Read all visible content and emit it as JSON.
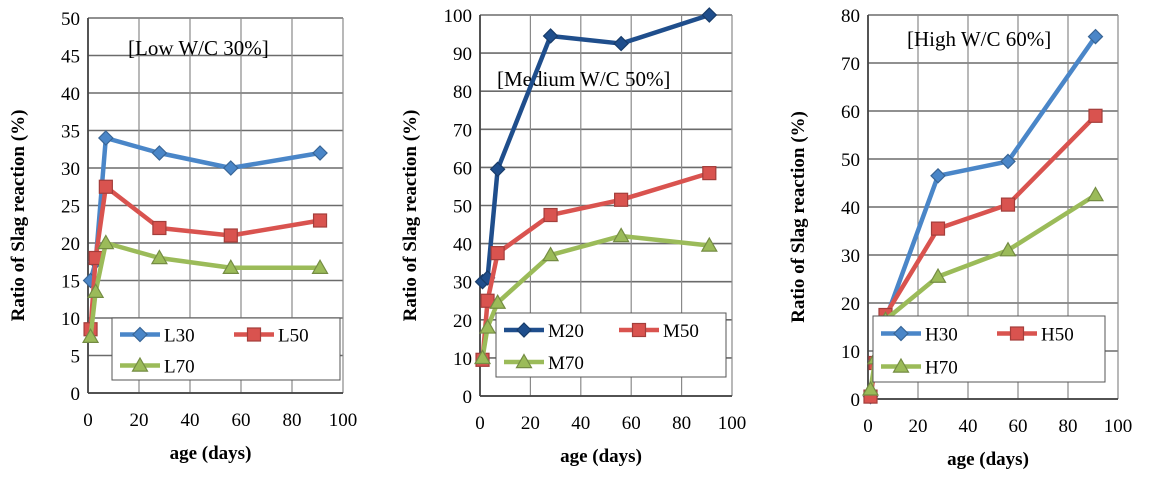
{
  "chart_data": [
    {
      "type": "line",
      "annotation": "[Low W/C 30%]",
      "xlabel": "age (days)",
      "ylabel": "Ratio of Slag reaction (%)",
      "xlim": [
        0,
        100
      ],
      "ylim": [
        0,
        50
      ],
      "xticks": [
        0,
        20,
        40,
        60,
        80,
        100
      ],
      "yticks": [
        0,
        5,
        10,
        15,
        20,
        25,
        30,
        35,
        40,
        45,
        50
      ],
      "grid": true,
      "legend": "bottom",
      "series": [
        {
          "name": "L30",
          "color": "#4a86c8",
          "marker": "diamond",
          "x": [
            1,
            3,
            7,
            28,
            56,
            91
          ],
          "y": [
            15,
            17.5,
            34,
            32,
            30,
            32
          ]
        },
        {
          "name": "L50",
          "color": "#d9534f",
          "marker": "square",
          "x": [
            1,
            3,
            7,
            28,
            56,
            91
          ],
          "y": [
            8.5,
            18,
            27.5,
            22,
            21,
            23
          ]
        },
        {
          "name": "L70",
          "color": "#9bbb59",
          "marker": "triangle",
          "x": [
            1,
            3,
            7,
            28,
            56,
            91
          ],
          "y": [
            7.5,
            13.5,
            20,
            18,
            16.7,
            16.7
          ]
        }
      ]
    },
    {
      "type": "line",
      "annotation": "[Medium W/C 50%]",
      "xlabel": "age (days)",
      "ylabel": "Ratio of Slag reaction (%)",
      "xlim": [
        0,
        100
      ],
      "ylim": [
        0,
        100
      ],
      "xticks": [
        0,
        20,
        40,
        60,
        80,
        100
      ],
      "yticks": [
        0,
        10,
        20,
        30,
        40,
        50,
        60,
        70,
        80,
        90,
        100
      ],
      "grid": true,
      "legend": "bottom",
      "series": [
        {
          "name": "M20",
          "color": "#1f4e8c",
          "marker": "diamond",
          "x": [
            1,
            3,
            7,
            28,
            56,
            91
          ],
          "y": [
            30,
            31,
            59.5,
            94.5,
            92.5,
            100
          ]
        },
        {
          "name": "M50",
          "color": "#d9534f",
          "marker": "square",
          "x": [
            1,
            3,
            7,
            28,
            56,
            91
          ],
          "y": [
            9.5,
            25,
            37.5,
            47.5,
            51.5,
            58.5
          ]
        },
        {
          "name": "M70",
          "color": "#9bbb59",
          "marker": "triangle",
          "x": [
            1,
            3,
            7,
            28,
            56,
            91
          ],
          "y": [
            10,
            18,
            24.5,
            37,
            42,
            39.5
          ]
        }
      ]
    },
    {
      "type": "line",
      "annotation": "[High W/C 60%]",
      "xlabel": "age (days)",
      "ylabel": "Ratio of Slag reaction (%)",
      "xlim": [
        0,
        100
      ],
      "ylim": [
        0,
        80
      ],
      "xticks": [
        0,
        20,
        40,
        60,
        80,
        100
      ],
      "yticks": [
        0,
        10,
        20,
        30,
        40,
        50,
        60,
        70,
        80
      ],
      "grid": true,
      "legend": "bottom",
      "series": [
        {
          "name": "H30",
          "color": "#4a86c8",
          "marker": "diamond",
          "x": [
            1,
            3,
            7,
            28,
            56,
            91
          ],
          "y": [
            0.5,
            8,
            16.5,
            46.5,
            49.5,
            75.5
          ]
        },
        {
          "name": "H50",
          "color": "#d9534f",
          "marker": "square",
          "x": [
            1,
            3,
            7,
            28,
            56,
            91
          ],
          "y": [
            0.5,
            7.5,
            17.5,
            35.5,
            40.5,
            59
          ]
        },
        {
          "name": "H70",
          "color": "#9bbb59",
          "marker": "triangle",
          "x": [
            1,
            3,
            7,
            28,
            56,
            91
          ],
          "y": [
            2,
            8.5,
            16.5,
            25.5,
            31,
            42.5
          ]
        }
      ]
    }
  ]
}
